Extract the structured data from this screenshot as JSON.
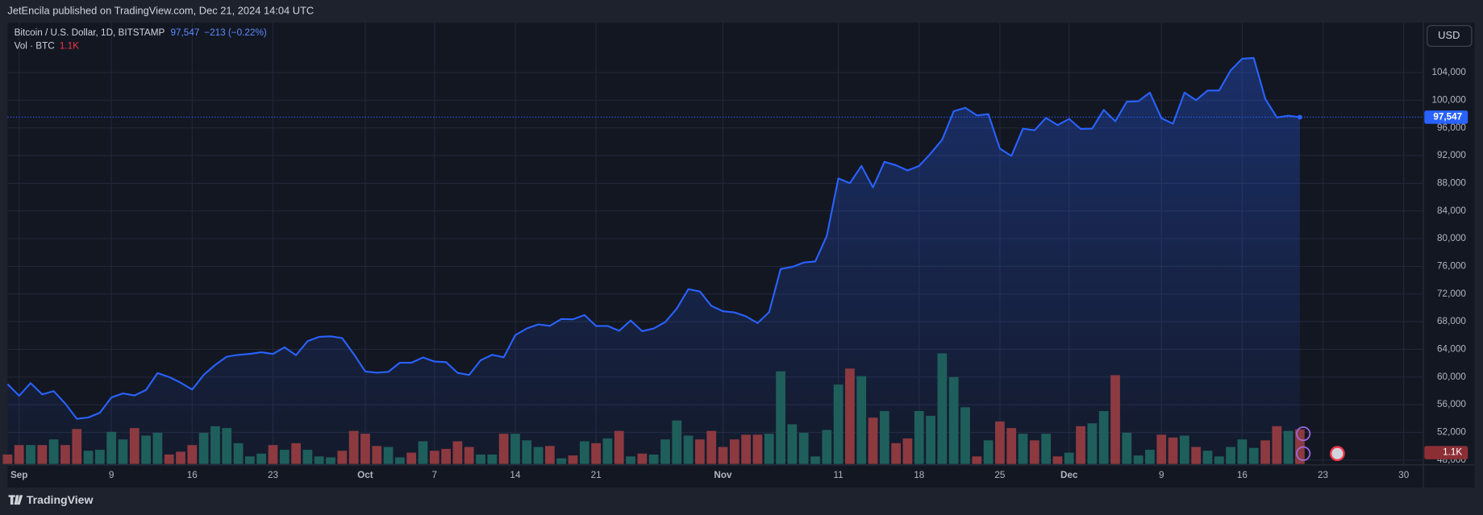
{
  "header": {
    "publisher": "JetEncila published on TradingView.com, Dec 21, 2024 14:04 UTC",
    "currency": "USD",
    "brand": "TradingView"
  },
  "chart_data": {
    "type": "line",
    "categories": [
      null,
      "Sep",
      null,
      null,
      null,
      null,
      null,
      null,
      null,
      "9",
      null,
      null,
      null,
      null,
      null,
      null,
      "16",
      null,
      null,
      null,
      null,
      null,
      null,
      "23",
      null,
      null,
      null,
      null,
      null,
      null,
      null,
      "Oct",
      null,
      null,
      null,
      null,
      null,
      "7",
      null,
      null,
      null,
      null,
      null,
      null,
      "14",
      null,
      null,
      null,
      null,
      null,
      null,
      "21",
      null,
      null,
      null,
      null,
      null,
      null,
      null,
      null,
      null,
      null,
      "Nov",
      null,
      null,
      null,
      null,
      null,
      null,
      null,
      null,
      null,
      "11",
      null,
      null,
      null,
      null,
      null,
      null,
      "18",
      null,
      null,
      null,
      null,
      null,
      null,
      "25",
      null,
      null,
      null,
      null,
      null,
      "Dec",
      null,
      null,
      null,
      null,
      null,
      null,
      null,
      "9",
      null,
      null,
      null,
      null,
      null,
      null,
      "16",
      null,
      null,
      null,
      null,
      null,
      null,
      "23",
      null,
      null,
      null,
      null,
      null,
      null,
      "30"
    ],
    "series": [
      {
        "name": "Bitcoin / U.S. Dollar, 1D, BITSTAMP",
        "color": "#2962ff",
        "last_value_label": "97,547",
        "change_label": "−213 (−0.22%)",
        "values": [
          58970,
          57300,
          59120,
          57480,
          57970,
          56160,
          53960,
          54150,
          54840,
          57050,
          57640,
          57340,
          58130,
          60570,
          60000,
          59180,
          58200,
          60310,
          61760,
          62950,
          63200,
          63350,
          63580,
          63330,
          64300,
          63150,
          65180,
          65800,
          65880,
          65620,
          63330,
          60800,
          60630,
          60750,
          62080,
          62060,
          62820,
          62240,
          62150,
          60600,
          60300,
          62420,
          63200,
          62850,
          66050,
          67020,
          67600,
          67400,
          68380,
          68340,
          68960,
          67370,
          67380,
          66670,
          68160,
          66620,
          67010,
          67950,
          69900,
          72700,
          72350,
          70280,
          69500,
          69340,
          68770,
          67800,
          69370,
          75620,
          75900,
          76540,
          76700,
          80400,
          88700,
          88000,
          90500,
          87400,
          91100,
          90600,
          89850,
          90500,
          92300,
          94300,
          98400,
          98900,
          97800,
          98000,
          93000,
          91950,
          95900,
          95650,
          97450,
          96400,
          97300,
          95850,
          95900,
          98600,
          96950,
          99800,
          99850,
          101100,
          97400,
          96600,
          101100,
          100000,
          101400,
          101400,
          104300,
          106000,
          106100,
          100200,
          97500,
          97760,
          97547,
          null,
          null,
          null,
          null,
          null,
          null,
          null,
          null,
          null
        ]
      },
      {
        "name": "Vol · BTC",
        "type": "bar",
        "up_color": "#1f5f5b",
        "down_color": "#8c3a40",
        "last_value_label": "1.1K",
        "values": [
          300,
          600,
          600,
          600,
          780,
          600,
          1110,
          420,
          450,
          1020,
          780,
          1140,
          900,
          990,
          300,
          390,
          600,
          990,
          1200,
          1140,
          660,
          240,
          330,
          600,
          450,
          660,
          450,
          240,
          210,
          420,
          1050,
          960,
          570,
          540,
          210,
          360,
          720,
          420,
          480,
          720,
          540,
          300,
          300,
          960,
          960,
          750,
          540,
          570,
          180,
          270,
          720,
          660,
          810,
          1050,
          240,
          330,
          300,
          780,
          1380,
          900,
          780,
          1050,
          540,
          780,
          930,
          930,
          960,
          2940,
          1260,
          990,
          240,
          1080,
          2520,
          3030,
          2790,
          1470,
          1680,
          660,
          810,
          1680,
          1530,
          3510,
          2760,
          1800,
          240,
          750,
          1350,
          1140,
          960,
          750,
          960,
          240,
          360,
          1200,
          1290,
          1680,
          2820,
          990,
          270,
          450,
          930,
          840,
          900,
          540,
          420,
          240,
          540,
          780,
          510,
          750,
          1200,
          1050,
          1100,
          null,
          null,
          null,
          null,
          null,
          null,
          null,
          null,
          null
        ]
      }
    ],
    "ylim": [
      47300,
      111200
    ],
    "yticks": [
      {
        "value": 48000,
        "label": "48,000"
      },
      {
        "value": 52000,
        "label": "52,000"
      },
      {
        "value": 56000,
        "label": "56,000"
      },
      {
        "value": 60000,
        "label": "60,000"
      },
      {
        "value": 64000,
        "label": "64,000"
      },
      {
        "value": 68000,
        "label": "68,000"
      },
      {
        "value": 72000,
        "label": "72,000"
      },
      {
        "value": 76000,
        "label": "76,000"
      },
      {
        "value": 80000,
        "label": "80,000"
      },
      {
        "value": 84000,
        "label": "84,000"
      },
      {
        "value": 88000,
        "label": "88,000"
      },
      {
        "value": 92000,
        "label": "92,000"
      },
      {
        "value": 96000,
        "label": "96,000"
      },
      {
        "value": 100000,
        "label": "100,000"
      },
      {
        "value": 104000,
        "label": "104,000"
      }
    ],
    "grid": true
  }
}
